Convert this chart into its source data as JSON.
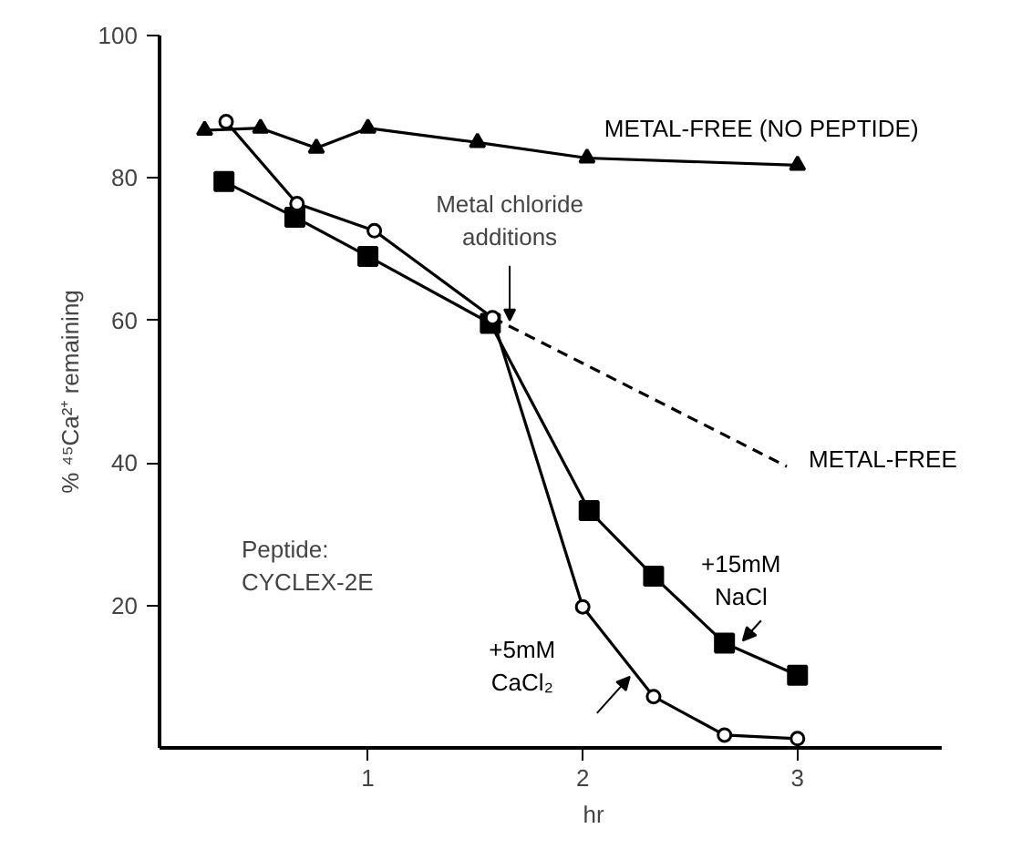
{
  "chart_data": {
    "type": "line",
    "xlabel": "hr",
    "ylabel": "% ⁴⁵Ca²⁺ remaining",
    "xlim": [
      0.03,
      3.67
    ],
    "ylim": [
      0,
      100
    ],
    "xticks": [
      1,
      2,
      3
    ],
    "yticks": [
      20,
      40,
      60,
      80,
      100
    ],
    "grid": false,
    "series": [
      {
        "name": "METAL-FREE (NO PEPTIDE)",
        "color": "#000000",
        "marker": "triangle",
        "line_style": "solid",
        "x": [
          0.24,
          0.5,
          0.76,
          1.0,
          1.51,
          2.02,
          3.0
        ],
        "values": [
          86.7,
          87,
          84.2,
          87,
          85,
          82.8,
          81.8
        ]
      },
      {
        "name": "METAL-FREE",
        "color": "#000000",
        "line_style": "dashed",
        "x": [
          1.58,
          2.95
        ],
        "values": [
          60.4,
          39.5
        ]
      },
      {
        "name": "+15mM\nNaCl",
        "color": "#000000",
        "marker": "square",
        "line_style": "solid",
        "x": [
          0.33,
          0.66,
          1.0,
          1.57,
          2.03,
          2.33,
          2.66,
          3.0
        ],
        "values": [
          79.5,
          74.5,
          69,
          59.6,
          33.3,
          24.1,
          14.7,
          10.2
        ]
      },
      {
        "name": "+5mM\nCaCl₂",
        "color": "#000000",
        "marker": "circle",
        "line_style": "solid",
        "x": [
          0.34,
          0.67,
          1.03,
          1.58,
          2.0,
          2.33,
          2.66,
          3.0
        ],
        "values": [
          87.9,
          76.4,
          72.6,
          60.4,
          19.8,
          7.2,
          1.8,
          1.3
        ]
      }
    ],
    "annotations": [
      {
        "text": "Metal chloride\nadditions",
        "x": 1.66,
        "y": 60
      },
      "Peptide:\nCYCLEX-2E"
    ]
  }
}
